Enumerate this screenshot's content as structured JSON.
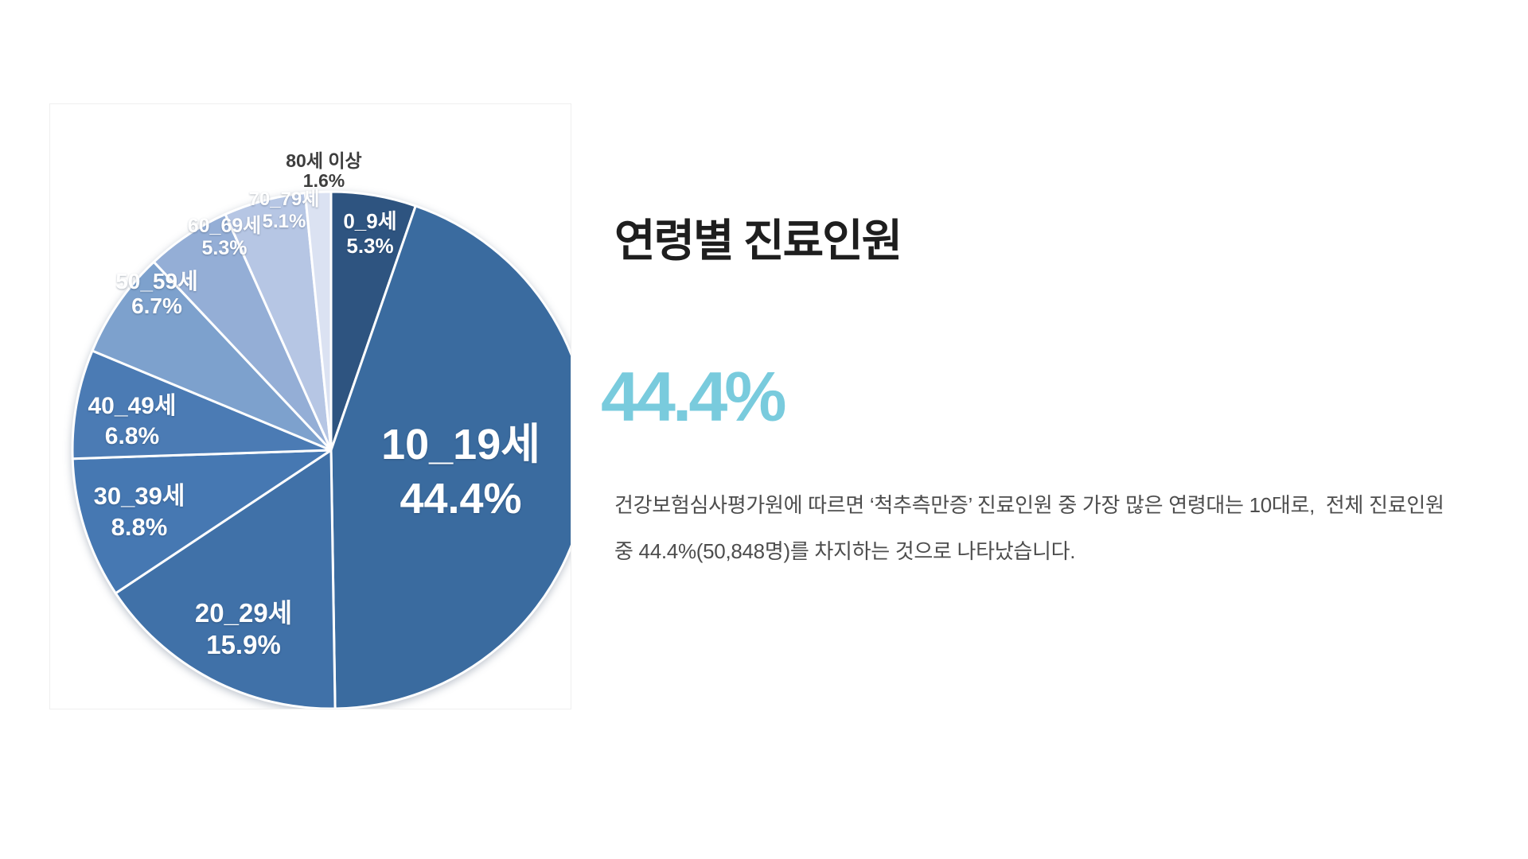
{
  "chart_data": {
    "type": "pie",
    "categories": [
      "0_9세",
      "10_19세",
      "20_29세",
      "30_39세",
      "40_49세",
      "50_59세",
      "60_69세",
      "70_79세",
      "80세 이상"
    ],
    "values": [
      5.3,
      44.4,
      15.9,
      8.8,
      6.8,
      6.7,
      5.3,
      5.1,
      1.6
    ],
    "unit": "%",
    "start_angle_deg": 0,
    "direction": "clockwise",
    "legend": "none",
    "slice_border_color": "#ffffff",
    "colors": [
      "#2E5480",
      "#3A6B9F",
      "#4071A8",
      "#4678B2",
      "#4B7BB4",
      "#7DA1CD",
      "#94AED6",
      "#B6C6E4",
      "#DBE2F2"
    ],
    "inside_label_color": "#ffffff",
    "outside_label_color": "#3e3e3e",
    "outside_label_category": "80세 이상"
  },
  "panel": {
    "title": "연령별 진료인원",
    "highlight_value": "44.4%",
    "highlight_color": "#79CBDD",
    "body_lines": [
      "건강보험심사평가원에 따르면 ‘척추측만증’ 진료인원 중 가장 많은 연령대는 10대로,  전체 진료인원",
      "중 44.4%(50,848명)를 차지하는 것으로 나타났습니다."
    ]
  }
}
